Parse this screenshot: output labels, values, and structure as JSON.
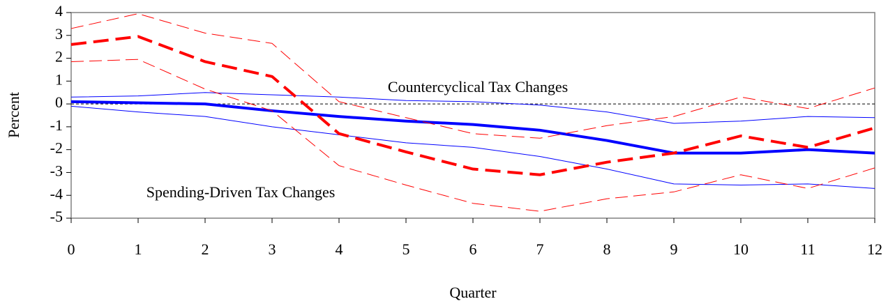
{
  "chart_data": {
    "type": "line",
    "x_label": "Quarter",
    "y_label": "Percent",
    "annotations": [
      "Countercyclical Tax Changes",
      "Spending-Driven Tax Changes"
    ],
    "x": [
      0,
      1,
      2,
      3,
      4,
      5,
      6,
      7,
      8,
      9,
      10,
      11,
      12
    ],
    "xlim": [
      0,
      12
    ],
    "xticks": [
      0,
      1,
      2,
      3,
      4,
      5,
      6,
      7,
      8,
      9,
      10,
      11,
      12
    ],
    "ylim": [
      -5,
      4
    ],
    "yticks": [
      -5,
      -4,
      -3,
      -2,
      -1,
      0,
      1,
      2,
      3,
      4
    ],
    "zero_line": true,
    "series": [
      {
        "color": "#0000ff",
        "width": 4,
        "dashed": false,
        "values": [
          0.1,
          0.05,
          0.0,
          -0.3,
          -0.55,
          -0.75,
          -0.9,
          -1.15,
          -1.6,
          -2.15,
          -2.15,
          -2.0,
          -2.15
        ]
      },
      {
        "color": "#0000ff",
        "width": 1,
        "dashed": false,
        "values": [
          0.3,
          0.35,
          0.5,
          0.4,
          0.3,
          0.15,
          0.1,
          -0.05,
          -0.35,
          -0.85,
          -0.75,
          -0.55,
          -0.6
        ]
      },
      {
        "color": "#0000ff",
        "width": 1,
        "dashed": false,
        "values": [
          -0.1,
          -0.35,
          -0.55,
          -1.0,
          -1.35,
          -1.7,
          -1.9,
          -2.3,
          -2.85,
          -3.5,
          -3.55,
          -3.5,
          -3.7
        ]
      },
      {
        "color": "#ff0000",
        "width": 4,
        "dashed": true,
        "values": [
          2.6,
          2.95,
          1.85,
          1.2,
          -1.3,
          -2.1,
          -2.85,
          -3.1,
          -2.55,
          -2.15,
          -1.4,
          -1.9,
          -1.05
        ]
      },
      {
        "color": "#ff0000",
        "width": 1,
        "dashed": true,
        "values": [
          3.3,
          3.95,
          3.1,
          2.65,
          0.1,
          -0.6,
          -1.3,
          -1.5,
          -0.95,
          -0.55,
          0.3,
          -0.2,
          0.7
        ]
      },
      {
        "color": "#ff0000",
        "width": 1,
        "dashed": true,
        "values": [
          1.85,
          1.95,
          0.65,
          -0.3,
          -2.7,
          -3.55,
          -4.35,
          -4.7,
          -4.15,
          -3.85,
          -3.1,
          -3.7,
          -2.8
        ]
      }
    ]
  }
}
